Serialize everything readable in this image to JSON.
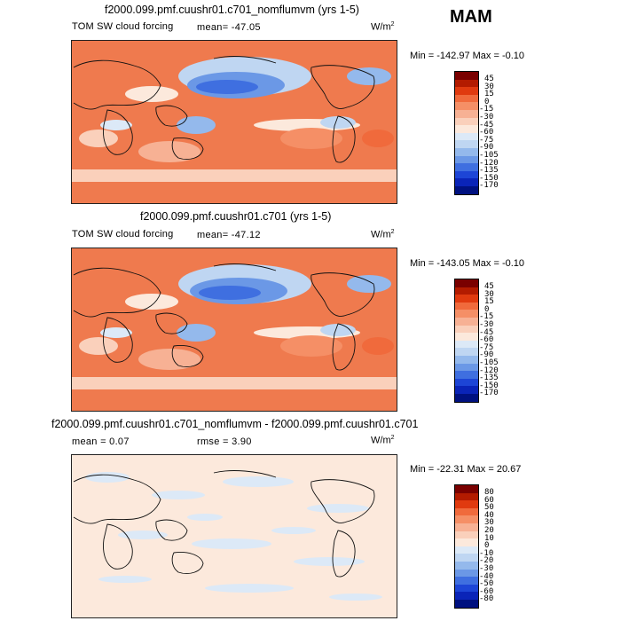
{
  "season": "MAM",
  "panels": [
    {
      "title": "f2000.099.pmf.cuushr01.c701_nomflumvm (yrs 1-5)",
      "label": "TOM SW cloud forcing",
      "stat1": "mean= -47.05",
      "stat2": "",
      "units": "W/m",
      "units_sup": "2",
      "minmax": "Min = -142.97 Max =  -0.10",
      "colorbar": {
        "labels": [
          "45",
          "30",
          "15",
          "0",
          "-15",
          "-30",
          "-45",
          "-60",
          "-75",
          "-90",
          "-105",
          "-120",
          "-135",
          "-150",
          "-170"
        ],
        "colors": [
          "#7a0000",
          "#b31b00",
          "#e03a0f",
          "#f06a3c",
          "#f58f66",
          "#f7b194",
          "#fad0bb",
          "#fce9dc",
          "#dce9f7",
          "#bfd6f2",
          "#94b9ec",
          "#6b98e6",
          "#3f6fe0",
          "#1d45d6",
          "#0a24b8",
          "#001180"
        ]
      }
    },
    {
      "title": "f2000.099.pmf.cuushr01.c701 (yrs 1-5)",
      "label": "TOM SW cloud forcing",
      "stat1": "mean= -47.12",
      "stat2": "",
      "units": "W/m",
      "units_sup": "2",
      "minmax": "Min = -143.05 Max =  -0.10",
      "colorbar": {
        "labels": [
          "45",
          "30",
          "15",
          "0",
          "-15",
          "-30",
          "-45",
          "-60",
          "-75",
          "-90",
          "-105",
          "-120",
          "-135",
          "-150",
          "-170"
        ],
        "colors": [
          "#7a0000",
          "#b31b00",
          "#e03a0f",
          "#f06a3c",
          "#f58f66",
          "#f7b194",
          "#fad0bb",
          "#fce9dc",
          "#dce9f7",
          "#bfd6f2",
          "#94b9ec",
          "#6b98e6",
          "#3f6fe0",
          "#1d45d6",
          "#0a24b8",
          "#001180"
        ]
      }
    },
    {
      "title": "f2000.099.pmf.cuushr01.c701_nomflumvm - f2000.099.pmf.cuushr01.c701",
      "label": "",
      "stat1": "mean =   0.07",
      "stat2": "rmse =   3.90",
      "units": "W/m",
      "units_sup": "2",
      "minmax": "Min = -22.31 Max =  20.67",
      "colorbar": {
        "labels": [
          "80",
          "60",
          "50",
          "40",
          "30",
          "20",
          "10",
          "0",
          "-10",
          "-20",
          "-30",
          "-40",
          "-50",
          "-60",
          "-80"
        ],
        "colors": [
          "#7a0000",
          "#b31b00",
          "#e03a0f",
          "#f06a3c",
          "#f58f66",
          "#f7b194",
          "#fad0bb",
          "#fce9dc",
          "#dce9f7",
          "#bfd6f2",
          "#94b9ec",
          "#6b98e6",
          "#3f6fe0",
          "#1d45d6",
          "#0a24b8",
          "#001180"
        ]
      }
    }
  ]
}
